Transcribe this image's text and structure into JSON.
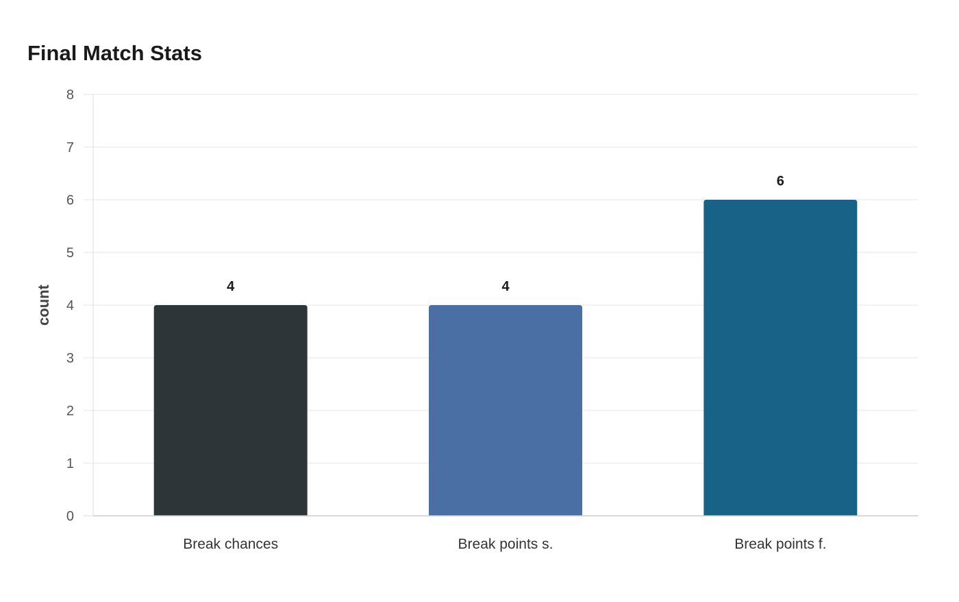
{
  "chart_data": {
    "type": "bar",
    "title": "Final Match Stats",
    "xlabel": "",
    "ylabel": "count",
    "categories": [
      "Break chances",
      "Break points s.",
      "Break points f."
    ],
    "values": [
      4,
      4,
      6
    ],
    "data_labels": [
      "4",
      "4",
      "6"
    ],
    "colors": [
      "#2e3538",
      "#4a6fa5",
      "#186288"
    ],
    "ylim": [
      0,
      8
    ],
    "yticks": [
      0,
      1,
      2,
      3,
      4,
      5,
      6,
      7,
      8
    ],
    "grid": true,
    "legend": "none"
  }
}
